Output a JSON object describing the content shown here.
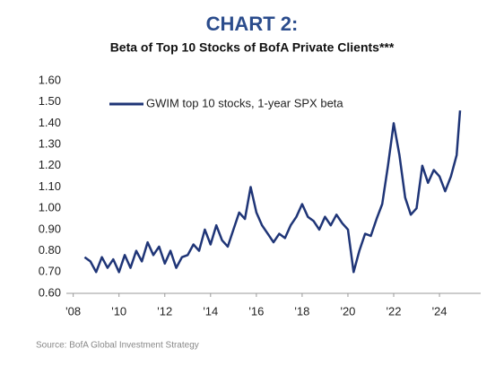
{
  "chart_data": {
    "type": "line",
    "title": "CHART 2:",
    "subtitle": "Beta of Top 10 Stocks of BofA Private Clients***",
    "source": "Source: BofA Global Investment Strategy",
    "x": [
      2008.5,
      2008.75,
      2009,
      2009.25,
      2009.5,
      2009.75,
      2010,
      2010.25,
      2010.5,
      2010.75,
      2011,
      2011.25,
      2011.5,
      2011.75,
      2012,
      2012.25,
      2012.5,
      2012.75,
      2013,
      2013.25,
      2013.5,
      2013.75,
      2014,
      2014.25,
      2014.5,
      2014.75,
      2015,
      2015.25,
      2015.5,
      2015.75,
      2016,
      2016.25,
      2016.5,
      2016.75,
      2017,
      2017.25,
      2017.5,
      2017.75,
      2018,
      2018.25,
      2018.5,
      2018.75,
      2019,
      2019.25,
      2019.5,
      2019.75,
      2020,
      2020.25,
      2020.5,
      2020.75,
      2021,
      2021.25,
      2021.5,
      2021.75,
      2022,
      2022.25,
      2022.5,
      2022.75,
      2023,
      2023.25,
      2023.5,
      2023.75,
      2024,
      2024.25,
      2024.5,
      2024.75,
      2024.9
    ],
    "series": [
      {
        "name": "GWIM top 10 stocks, 1-year SPX beta",
        "color": "#1f3577",
        "values": [
          0.77,
          0.75,
          0.7,
          0.77,
          0.72,
          0.76,
          0.7,
          0.78,
          0.72,
          0.8,
          0.75,
          0.84,
          0.78,
          0.82,
          0.74,
          0.8,
          0.72,
          0.77,
          0.78,
          0.83,
          0.8,
          0.9,
          0.83,
          0.92,
          0.85,
          0.82,
          0.9,
          0.98,
          0.95,
          1.1,
          0.98,
          0.92,
          0.88,
          0.84,
          0.88,
          0.86,
          0.92,
          0.96,
          1.02,
          0.96,
          0.94,
          0.9,
          0.96,
          0.92,
          0.97,
          0.93,
          0.9,
          0.7,
          0.8,
          0.88,
          0.87,
          0.95,
          1.02,
          1.2,
          1.4,
          1.25,
          1.05,
          0.97,
          1.0,
          1.2,
          1.12,
          1.18,
          1.15,
          1.08,
          1.15,
          1.25,
          1.46
        ]
      }
    ],
    "xlim": [
      2007.7,
      2025.8
    ],
    "ylim": [
      0.6,
      1.6
    ],
    "xticks": [
      {
        "value": 2008,
        "label": "'08"
      },
      {
        "value": 2010,
        "label": "'10"
      },
      {
        "value": 2012,
        "label": "'12"
      },
      {
        "value": 2014,
        "label": "'14"
      },
      {
        "value": 2016,
        "label": "'16"
      },
      {
        "value": 2018,
        "label": "'18"
      },
      {
        "value": 2020,
        "label": "'20"
      },
      {
        "value": 2022,
        "label": "'22"
      },
      {
        "value": 2024,
        "label": "'24"
      }
    ],
    "yticks": [
      {
        "value": 0.6,
        "label": "0.60"
      },
      {
        "value": 0.7,
        "label": "0.70"
      },
      {
        "value": 0.8,
        "label": "0.80"
      },
      {
        "value": 0.9,
        "label": "0.90"
      },
      {
        "value": 1.0,
        "label": "1.00"
      },
      {
        "value": 1.1,
        "label": "1.10"
      },
      {
        "value": 1.2,
        "label": "1.20"
      },
      {
        "value": 1.3,
        "label": "1.30"
      },
      {
        "value": 1.4,
        "label": "1.40"
      },
      {
        "value": 1.5,
        "label": "1.50"
      },
      {
        "value": 1.6,
        "label": "1.60"
      }
    ]
  }
}
